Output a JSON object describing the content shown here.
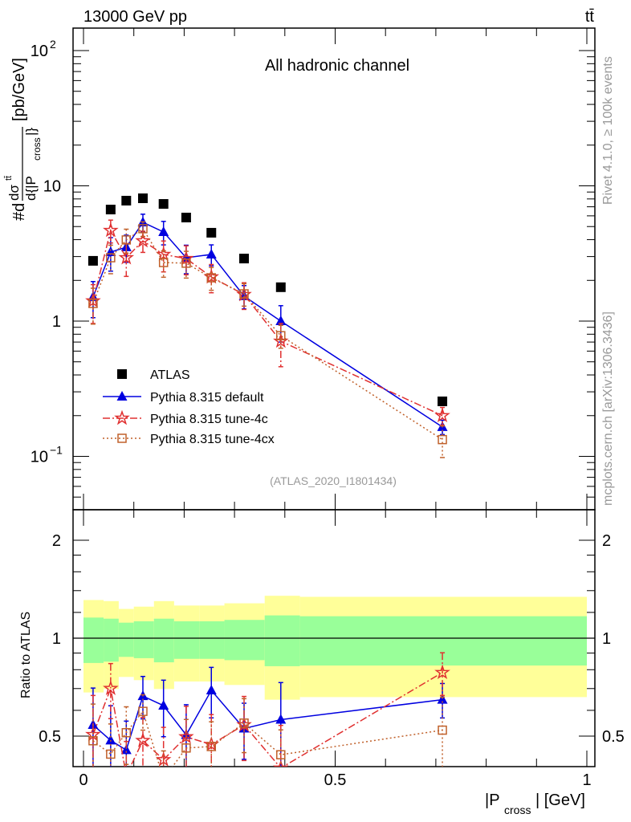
{
  "header": {
    "energy": "13000 GeV pp",
    "process": "tt̄",
    "title": "All hadronic channel",
    "analysis": "(ATLAS_2020_I1801434)",
    "rivet": "Rivet 4.1.0, ≥ 100k events",
    "site": "mcplots.cern.ch [arXiv:1306.3436]"
  },
  "ylabel_parts": {
    "prefix": "#d",
    "num": "dσ",
    "sup": "tt̄",
    "den": "d{|P",
    "sub": "cross",
    "den_end": "|}",
    "units": "[pb/GeV]"
  },
  "xlabel_parts": {
    "main": "|P",
    "sub": "cross",
    "end": "| [GeV]"
  },
  "ratio_ylabel": "Ratio to ATLAS",
  "legend": [
    {
      "label": "ATLAS",
      "color": "#000000",
      "marker": "filled-square",
      "line": "none"
    },
    {
      "label": "Pythia 8.315 default",
      "color": "#0000e0",
      "marker": "filled-triangle",
      "line": "solid"
    },
    {
      "label": "Pythia 8.315 tune-4c",
      "color": "#e03030",
      "marker": "open-star",
      "line": "dash-dot"
    },
    {
      "label": "Pythia 8.315 tune-4cx",
      "color": "#c0602a",
      "marker": "open-square",
      "line": "dotted"
    }
  ],
  "chart_data": [
    {
      "type": "scatter",
      "title": "All hadronic channel",
      "xlabel": "|P_cross| [GeV]",
      "ylabel": "#d dσ^{tt̄}/d{|P_cross|} [pb/GeV]",
      "yscale": "log",
      "xlim": [
        -0.021,
        1.016
      ],
      "ylim": [
        0.04,
        146
      ],
      "ytick_labels": [
        {
          "v": 100,
          "base": "10",
          "exp": "2"
        },
        {
          "v": 10,
          "base": "10",
          "exp": ""
        },
        {
          "v": 1,
          "base": "1",
          "exp": ""
        },
        {
          "v": 0.1,
          "base": "10",
          "exp": "−1"
        }
      ],
      "legend_position": "lower-left",
      "x": [
        0.019,
        0.054,
        0.085,
        0.118,
        0.159,
        0.204,
        0.254,
        0.319,
        0.392,
        0.713
      ],
      "series": [
        {
          "name": "ATLAS",
          "values": [
            2.79,
            6.68,
            7.77,
            8.09,
            7.35,
            5.83,
            4.5,
            2.9,
            1.78,
            0.255
          ],
          "errors": [
            0,
            0,
            0,
            0,
            0,
            0,
            0,
            0,
            0,
            0
          ]
        },
        {
          "name": "Pythia 8.315 default",
          "values": [
            1.51,
            3.24,
            3.52,
            5.37,
            4.56,
            2.94,
            3.11,
            1.53,
            1.0,
            0.165
          ],
          "errors": [
            0.45,
            0.9,
            0.8,
            0.8,
            0.9,
            0.7,
            0.55,
            0.3,
            0.3,
            0.02
          ]
        },
        {
          "name": "Pythia 8.315 tune-4c",
          "values": [
            1.41,
            4.68,
            2.94,
            3.92,
            3.11,
            2.9,
            2.12,
            1.57,
            0.71,
            0.2
          ],
          "errors": [
            0.45,
            0.9,
            0.8,
            0.7,
            0.8,
            0.7,
            0.5,
            0.35,
            0.25,
            0.03
          ]
        },
        {
          "name": "Pythia 8.315 tune-4cx",
          "values": [
            1.35,
            2.94,
            3.98,
            4.82,
            2.71,
            2.68,
            2.09,
            1.59,
            0.78,
            0.133
          ],
          "errors": [
            0.4,
            0.7,
            0.8,
            0.6,
            0.6,
            0.6,
            0.4,
            0.3,
            0.15,
            0.035
          ]
        }
      ]
    },
    {
      "type": "scatter",
      "ylabel": "Ratio to ATLAS",
      "xlabel": "|P_cross| [GeV]",
      "yscale": "log",
      "ylim": [
        0.403,
        2.48
      ],
      "xlim": [
        -0.021,
        1.016
      ],
      "xtick_labels": [
        {
          "v": 0,
          "t": "0"
        },
        {
          "v": 0.5,
          "t": "0.5"
        },
        {
          "v": 1,
          "t": "1"
        }
      ],
      "ytick_labels": [
        {
          "v": 2,
          "t": "2"
        },
        {
          "v": 1,
          "t": "1"
        },
        {
          "v": 0.5,
          "t": "0.5"
        }
      ],
      "bin_edges": [
        0,
        0.04,
        0.07,
        0.1,
        0.14,
        0.18,
        0.23,
        0.28,
        0.36,
        0.43,
        1.0
      ],
      "band_1sigma": {
        "upper": [
          1.157,
          1.148,
          1.116,
          1.127,
          1.148,
          1.127,
          1.127,
          1.138,
          1.175,
          1.168
        ],
        "lower": [
          0.839,
          0.847,
          0.876,
          0.868,
          0.843,
          0.864,
          0.864,
          0.856,
          0.82,
          0.824
        ],
        "color": "#99ff99"
      },
      "band_2sigma": {
        "upper": [
          1.31,
          1.3,
          1.23,
          1.25,
          1.3,
          1.26,
          1.26,
          1.28,
          1.35,
          1.34
        ],
        "lower": [
          0.681,
          0.698,
          0.76,
          0.743,
          0.698,
          0.736,
          0.736,
          0.718,
          0.647,
          0.659
        ],
        "color": "#ffff99"
      },
      "reference": "ATLAS"
    }
  ]
}
